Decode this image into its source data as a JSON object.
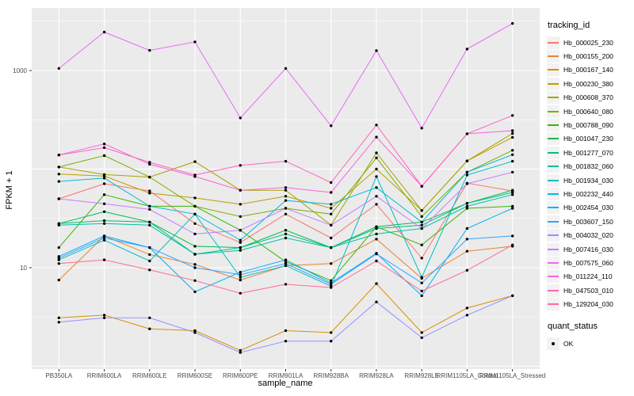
{
  "figure": {
    "panel_bg": "#EBEBEB",
    "gridline_color": "#FFFFFF",
    "point_color": "#000000",
    "tick_label_color": "#4D4D4D",
    "legend_key_bg": "#F2F2F2"
  },
  "chart_data": {
    "type": "line",
    "title": "",
    "xlabel": "sample_name",
    "ylabel": "FPKM + 1",
    "legend_title": "tracking_id",
    "legend_position": "right",
    "grid": true,
    "x_scale": "categorical",
    "y_scale": "log10",
    "y_breaks": [
      1,
      10,
      100,
      1000
    ],
    "y_tick_labels_shown": [
      {
        "value": 1000,
        "label": "1000"
      },
      {
        "value": 10,
        "label": "10"
      }
    ],
    "y_minor_breaks": [
      3.162,
      31.62,
      316.2,
      3162
    ],
    "ylim": [
      0.94,
      4300
    ],
    "categories": [
      "PB350LA",
      "RRIM600LA",
      "RRIM600LE",
      "RRIM600SE",
      "RRIM600PE",
      "RRIM901LA",
      "RRIM928BA",
      "RRIM928LA",
      "RRIM928LE",
      "RRIM1105LA_Control",
      "RRIM1105LA_Stressed"
    ],
    "series": [
      {
        "name": "Hb_000025_230",
        "color": "#F8766D",
        "values": [
          50,
          71,
          60,
          28,
          18,
          35,
          20,
          44,
          12.5,
          72,
          60
        ]
      },
      {
        "name": "Hb_000155_200",
        "color": "#EA8331",
        "values": [
          7.5,
          21,
          13.6,
          10.8,
          7.5,
          10.5,
          11,
          19.5,
          7.8,
          14.7,
          16.5
        ]
      },
      {
        "name": "Hb_000167_140",
        "color": "#D89000",
        "values": [
          3.1,
          3.3,
          2.4,
          2.3,
          1.45,
          2.3,
          2.2,
          6.9,
          2.2,
          3.9,
          5.2
        ]
      },
      {
        "name": "Hb_000230_380",
        "color": "#C09B00",
        "values": [
          89,
          85,
          57,
          51,
          44,
          53,
          40,
          100,
          38,
          121,
          210
        ]
      },
      {
        "name": "Hb_000608_370",
        "color": "#A3A500",
        "values": [
          105,
          88,
          83,
          119,
          61,
          61,
          27,
          146,
          38,
          121,
          230
        ]
      },
      {
        "name": "Hb_000640_080",
        "color": "#7CAE00",
        "values": [
          105,
          137,
          83,
          42,
          33,
          40,
          35,
          130,
          33,
          93,
          155
        ]
      },
      {
        "name": "Hb_000788_090",
        "color": "#39B600",
        "values": [
          16,
          55,
          42,
          42,
          24,
          11.5,
          7.4,
          26,
          17,
          40,
          42
        ]
      },
      {
        "name": "Hb_001047_230",
        "color": "#00BB4E",
        "values": [
          28,
          37,
          29,
          16.5,
          16,
          24,
          16,
          26,
          29,
          45,
          61
        ]
      },
      {
        "name": "Hb_001277_070",
        "color": "#00BF7D",
        "values": [
          28,
          30,
          29,
          13.7,
          16,
          22,
          16,
          25,
          27,
          45,
          58
        ]
      },
      {
        "name": "Hb_001832_060",
        "color": "#00C1A3",
        "values": [
          27,
          28,
          27,
          13.7,
          15,
          20,
          16,
          22,
          25,
          42,
          55
        ]
      },
      {
        "name": "Hb_001934_030",
        "color": "#00BFC4",
        "values": [
          12,
          19,
          11.7,
          35,
          8,
          10.5,
          6.5,
          84,
          8,
          87,
          120
        ]
      },
      {
        "name": "Hb_002232_440",
        "color": "#00BAE0",
        "values": [
          75,
          81,
          42,
          35,
          19,
          48,
          44,
          65,
          29,
          93,
          140
        ]
      },
      {
        "name": "Hb_002454_030",
        "color": "#00B0F6",
        "values": [
          13,
          21,
          16,
          5.7,
          9,
          12,
          7,
          14,
          5.2,
          25,
          40
        ]
      },
      {
        "name": "Hb_003607_150",
        "color": "#35A2FF",
        "values": [
          12.5,
          20,
          16,
          10,
          8.5,
          11,
          6.8,
          13.8,
          7,
          19.5,
          21
        ]
      },
      {
        "name": "Hb_004032_020",
        "color": "#9590FF",
        "values": [
          2.8,
          3.1,
          3.1,
          2.2,
          1.38,
          1.8,
          1.8,
          4.5,
          1.95,
          3.3,
          5.2
        ]
      },
      {
        "name": "Hb_007416_030",
        "color": "#C77CFF",
        "values": [
          50,
          44.5,
          39,
          22,
          24,
          40,
          27,
          53,
          25,
          71,
          93
        ]
      },
      {
        "name": "Hb_007575_060",
        "color": "#E76BF3",
        "values": [
          1050,
          2450,
          1600,
          1950,
          330,
          1050,
          275,
          1590,
          260,
          1650,
          3000
        ]
      },
      {
        "name": "Hb_011224_110",
        "color": "#FA62DB",
        "values": [
          139,
          180,
          112,
          84,
          61,
          65,
          58,
          211,
          67,
          228,
          245
        ]
      },
      {
        "name": "Hb_047503_010",
        "color": "#FF62BC",
        "values": [
          139,
          165,
          117,
          87,
          109,
          120,
          73,
          280,
          67,
          228,
          350
        ]
      },
      {
        "name": "Hb_129204_030",
        "color": "#FF6A98",
        "values": [
          11,
          12,
          9.5,
          7.4,
          5.5,
          6.8,
          6.3,
          11.7,
          5.8,
          9.4,
          17
        ]
      }
    ],
    "point_legend": {
      "title": "quant_status",
      "items": [
        {
          "label": "OK"
        }
      ]
    }
  }
}
